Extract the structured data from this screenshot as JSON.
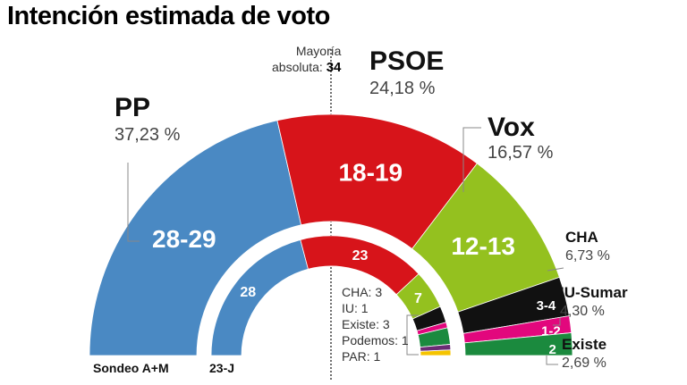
{
  "title": "Intención estimada de voto",
  "majority": {
    "label": "Mayoría absoluta:",
    "line1": "Mayoría",
    "line2": "absoluta:",
    "value": "34"
  },
  "chart_data": {
    "type": "parliament",
    "title": "Intención estimada de voto",
    "rings": [
      {
        "name": "Sondeo A+M",
        "parties": [
          {
            "party": "PP",
            "seats": "28-29",
            "seat_mid": 28.5,
            "vote_pct": "37,23 %",
            "color": "#4a89c3"
          },
          {
            "party": "PSOE",
            "seats": "18-19",
            "seat_mid": 18.5,
            "vote_pct": "24,18 %",
            "color": "#d7141a"
          },
          {
            "party": "Vox",
            "seats": "12-13",
            "seat_mid": 12.5,
            "vote_pct": "16,57 %",
            "color": "#94c11f"
          },
          {
            "party": "CHA",
            "seats": "3-4",
            "seat_mid": 3.5,
            "vote_pct": "6,73 %",
            "color": "#111111"
          },
          {
            "party": "IU-Sumar",
            "seats": "1-2",
            "seat_mid": 1.5,
            "vote_pct": "4,30 %",
            "color": "#e2077d"
          },
          {
            "party": "Existe",
            "seats": "2",
            "seat_mid": 2,
            "vote_pct": "2,69 %",
            "color": "#1b8a3e"
          }
        ]
      },
      {
        "name": "23-J",
        "parties": [
          {
            "party": "PP",
            "seats": 28,
            "label": "28",
            "color": "#4a89c3"
          },
          {
            "party": "PSOE",
            "seats": 23,
            "label": "23",
            "color": "#d7141a"
          },
          {
            "party": "Vox",
            "seats": 7,
            "label": "7",
            "color": "#94c11f"
          },
          {
            "party": "CHA",
            "seats": 3,
            "label": "",
            "color": "#111111"
          },
          {
            "party": "IU",
            "seats": 1,
            "label": "",
            "color": "#e2077d"
          },
          {
            "party": "Existe",
            "seats": 3,
            "label": "",
            "color": "#1b8a3e"
          },
          {
            "party": "Podemos",
            "seats": 1,
            "label": "",
            "color": "#6b2c74"
          },
          {
            "party": "PAR",
            "seats": 1,
            "label": "",
            "color": "#f5c400"
          }
        ]
      }
    ],
    "legend_23j": [
      "CHA: 3",
      "IU: 1",
      "Existe: 3",
      "Podemos: 1",
      "PAR: 1"
    ]
  }
}
